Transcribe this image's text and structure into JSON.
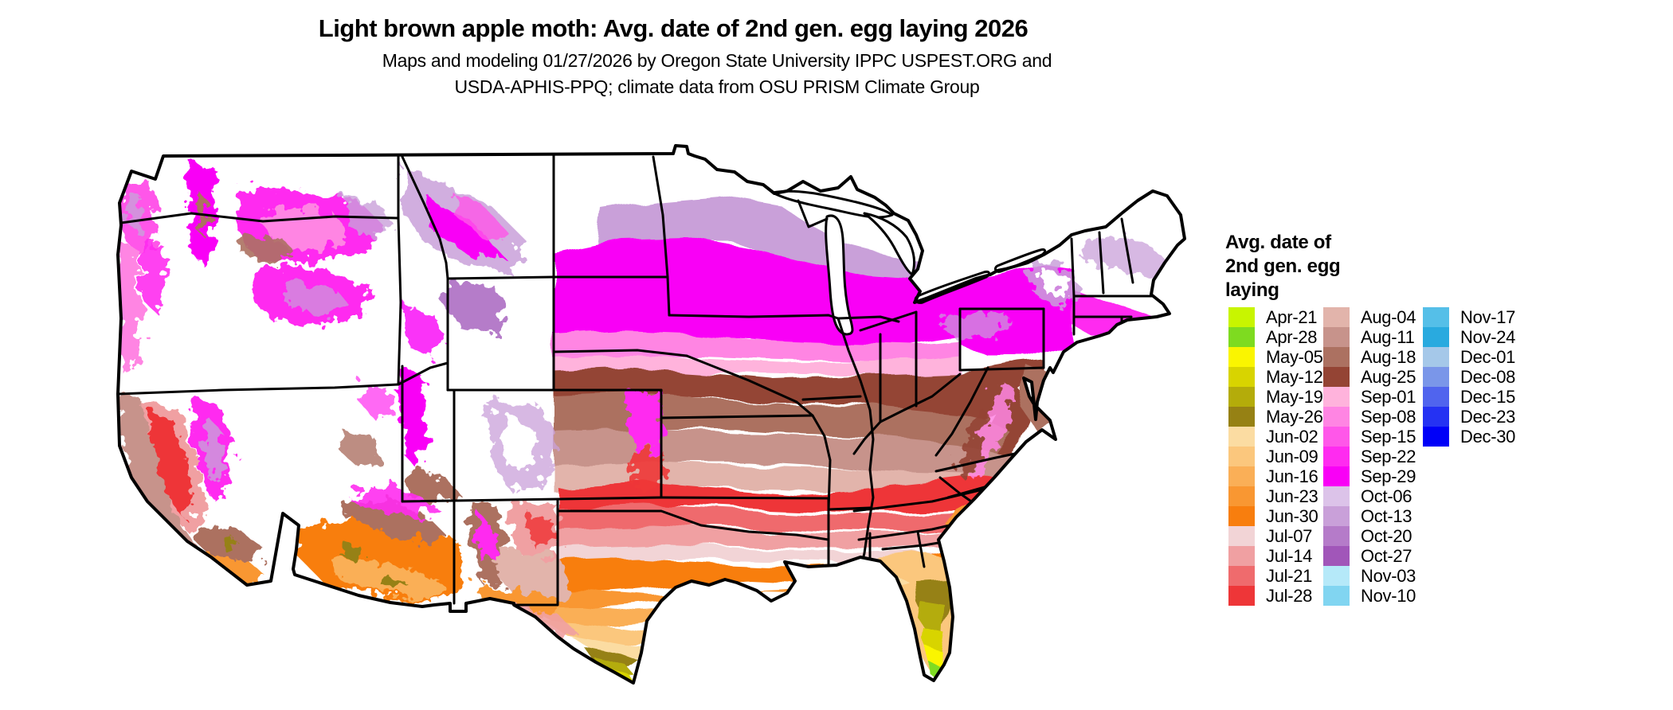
{
  "title": "Light brown apple moth: Avg. date of 2nd gen. egg laying 2026",
  "subtitle_line1": "Maps and modeling 01/27/2026 by Oregon State University IPPC USPEST.ORG and",
  "subtitle_line2": "USDA-APHIS-PPQ; climate data from OSU PRISM Climate Group",
  "legend": {
    "title_line1": "Avg. date of",
    "title_line2": "2nd gen. egg",
    "title_line3": "laying",
    "columns": [
      {
        "entries": [
          {
            "label": "Apr-21",
            "color": "#C8F500"
          },
          {
            "label": "Apr-28",
            "color": "#7EDB20"
          },
          {
            "label": "May-05",
            "color": "#FAF500"
          },
          {
            "label": "May-12",
            "color": "#D8D400"
          },
          {
            "label": "May-19",
            "color": "#B4AC0A"
          },
          {
            "label": "May-26",
            "color": "#968114"
          },
          {
            "label": "Jun-02",
            "color": "#FBDCA2"
          },
          {
            "label": "Jun-09",
            "color": "#FBC77D"
          },
          {
            "label": "Jun-16",
            "color": "#FAAF57"
          },
          {
            "label": "Jun-23",
            "color": "#F99732"
          },
          {
            "label": "Jun-30",
            "color": "#F87E0E"
          },
          {
            "label": "Jul-07",
            "color": "#F2D4D6"
          },
          {
            "label": "Jul-14",
            "color": "#F0A0A2"
          },
          {
            "label": "Jul-21",
            "color": "#EF6B6D"
          },
          {
            "label": "Jul-28",
            "color": "#EE3638"
          }
        ]
      },
      {
        "entries": [
          {
            "label": "Aug-04",
            "color": "#E2B4AB"
          },
          {
            "label": "Aug-11",
            "color": "#C7938B"
          },
          {
            "label": "Aug-18",
            "color": "#AC7161"
          },
          {
            "label": "Aug-25",
            "color": "#944434"
          },
          {
            "label": "Sep-01",
            "color": "#FFB3DC"
          },
          {
            "label": "Sep-08",
            "color": "#FF85E3"
          },
          {
            "label": "Sep-15",
            "color": "#FF57E9"
          },
          {
            "label": "Sep-22",
            "color": "#FF2BF0"
          },
          {
            "label": "Sep-29",
            "color": "#F900F6"
          },
          {
            "label": "Oct-06",
            "color": "#DCC3E9"
          },
          {
            "label": "Oct-13",
            "color": "#C9A0D9"
          },
          {
            "label": "Oct-20",
            "color": "#B57BC9"
          },
          {
            "label": "Oct-27",
            "color": "#A156B9"
          },
          {
            "label": "Nov-03",
            "color": "#B5E9F9"
          },
          {
            "label": "Nov-10",
            "color": "#81D5F1"
          }
        ]
      },
      {
        "entries": [
          {
            "label": "Nov-17",
            "color": "#55BFE8"
          },
          {
            "label": "Nov-24",
            "color": "#29AADF"
          },
          {
            "label": "Dec-01",
            "color": "#A5C8E9"
          },
          {
            "label": "Dec-08",
            "color": "#7A96E9"
          },
          {
            "label": "Dec-15",
            "color": "#5064EE"
          },
          {
            "label": "Dec-23",
            "color": "#2532F3"
          },
          {
            "label": "Dec-30",
            "color": "#0000F8"
          }
        ]
      }
    ]
  },
  "map": {
    "land_color": "#FFFFFF",
    "border_color": "#000000"
  }
}
